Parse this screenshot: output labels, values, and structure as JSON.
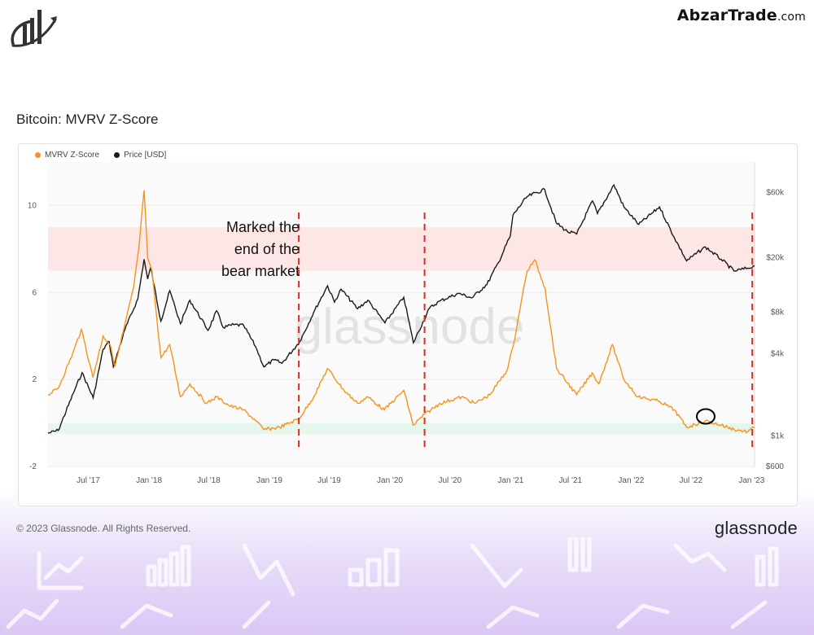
{
  "header": {
    "brand_name": "AbzarTrade",
    "brand_suffix": ".com"
  },
  "chart_title": "Bitcoin: MVRV Z-Score",
  "footer": {
    "copyright": "© 2023 Glassnode. All Rights Reserved.",
    "brand": "glassnode"
  },
  "watermark": "glassnode",
  "colors": {
    "mvrv": "#f7931a",
    "price": "#1a1a1a",
    "red_band": "#fde3e3",
    "green_band": "#e2f5ea",
    "marker": "#e02a1a"
  },
  "chart_data": {
    "type": "line",
    "title": "Bitcoin: MVRV Z-Score",
    "legend": [
      "MVRV Z-Score",
      "Price [USD]"
    ],
    "legend_position": "top-left",
    "x_tick_labels": [
      "Jul '17",
      "Jan '18",
      "Jul '18",
      "Jan '19",
      "Jul '19",
      "Jan '20",
      "Jul '20",
      "Jan '21",
      "Jul '21",
      "Jan '22",
      "Jul '22",
      "Jan '23"
    ],
    "x_range": [
      "2017-03-01",
      "2023-01-10"
    ],
    "y_left": {
      "ylim": [
        -2,
        12
      ],
      "ticks": [
        "-2",
        "2",
        "6",
        "10"
      ]
    },
    "y_right": {
      "scale": "log",
      "ylim": [
        600,
        100000
      ],
      "ticks": [
        {
          "label": "$600",
          "value": 600
        },
        {
          "label": "$1k",
          "value": 1000
        },
        {
          "label": "$4k",
          "value": 4000
        },
        {
          "label": "$8k",
          "value": 8000
        },
        {
          "label": "$20k",
          "value": 20000
        },
        {
          "label": "$60k",
          "value": 60000
        }
      ]
    },
    "zones": [
      {
        "name": "red",
        "y_from": 7,
        "y_to": 9
      },
      {
        "name": "green",
        "y_from": -0.5,
        "y_to": 0
      }
    ],
    "series": [
      {
        "name": "MVRV Z-Score",
        "axis": "left",
        "points": [
          [
            "2017-03-01",
            1.3
          ],
          [
            "2017-04-01",
            1.6
          ],
          [
            "2017-05-15",
            3.2
          ],
          [
            "2017-06-10",
            4.3
          ],
          [
            "2017-07-15",
            2.1
          ],
          [
            "2017-08-15",
            4.0
          ],
          [
            "2017-09-05",
            3.6
          ],
          [
            "2017-09-20",
            2.6
          ],
          [
            "2017-10-15",
            4.2
          ],
          [
            "2017-11-15",
            6.2
          ],
          [
            "2017-12-01",
            8.0
          ],
          [
            "2017-12-17",
            10.7
          ],
          [
            "2017-12-28",
            7.6
          ],
          [
            "2018-01-10",
            7.0
          ],
          [
            "2018-02-06",
            3.0
          ],
          [
            "2018-03-05",
            3.6
          ],
          [
            "2018-04-06",
            1.2
          ],
          [
            "2018-05-05",
            1.8
          ],
          [
            "2018-06-25",
            0.9
          ],
          [
            "2018-07-25",
            1.2
          ],
          [
            "2018-09-01",
            0.8
          ],
          [
            "2018-10-15",
            0.6
          ],
          [
            "2018-11-20",
            0.1
          ],
          [
            "2018-12-15",
            -0.3
          ],
          [
            "2019-02-01",
            -0.2
          ],
          [
            "2019-04-01",
            0.2
          ],
          [
            "2019-05-15",
            1.2
          ],
          [
            "2019-06-26",
            2.5
          ],
          [
            "2019-08-15",
            1.5
          ],
          [
            "2019-09-25",
            0.9
          ],
          [
            "2019-10-26",
            1.2
          ],
          [
            "2019-12-15",
            0.6
          ],
          [
            "2020-02-12",
            1.5
          ],
          [
            "2020-03-12",
            -0.1
          ],
          [
            "2020-04-15",
            0.4
          ],
          [
            "2020-06-01",
            0.9
          ],
          [
            "2020-08-05",
            1.2
          ],
          [
            "2020-09-15",
            0.9
          ],
          [
            "2020-10-30",
            1.3
          ],
          [
            "2020-12-20",
            2.4
          ],
          [
            "2021-01-08",
            3.5
          ],
          [
            "2021-02-01",
            5.5
          ],
          [
            "2021-02-20",
            7.0
          ],
          [
            "2021-03-15",
            7.5
          ],
          [
            "2021-04-15",
            6.2
          ],
          [
            "2021-05-20",
            2.5
          ],
          [
            "2021-07-20",
            1.3
          ],
          [
            "2021-09-05",
            2.3
          ],
          [
            "2021-09-25",
            1.8
          ],
          [
            "2021-11-05",
            3.6
          ],
          [
            "2021-12-10",
            2.0
          ],
          [
            "2022-01-22",
            1.2
          ],
          [
            "2022-03-28",
            1.0
          ],
          [
            "2022-05-12",
            0.6
          ],
          [
            "2022-06-18",
            -0.2
          ],
          [
            "2022-08-14",
            0.1
          ],
          [
            "2022-10-01",
            -0.1
          ],
          [
            "2022-11-09",
            -0.3
          ],
          [
            "2022-12-20",
            -0.4
          ],
          [
            "2023-01-10",
            -0.2
          ]
        ]
      },
      {
        "name": "Price [USD]",
        "axis": "right",
        "points": [
          [
            "2017-03-01",
            1050
          ],
          [
            "2017-04-01",
            1100
          ],
          [
            "2017-05-25",
            2300
          ],
          [
            "2017-06-12",
            2900
          ],
          [
            "2017-07-16",
            1900
          ],
          [
            "2017-08-15",
            4300
          ],
          [
            "2017-09-02",
            4900
          ],
          [
            "2017-09-15",
            3200
          ],
          [
            "2017-10-20",
            6000
          ],
          [
            "2017-11-28",
            10000
          ],
          [
            "2017-12-17",
            19500
          ],
          [
            "2017-12-28",
            14000
          ],
          [
            "2018-01-06",
            17000
          ],
          [
            "2018-02-06",
            6900
          ],
          [
            "2018-03-05",
            11500
          ],
          [
            "2018-04-06",
            6600
          ],
          [
            "2018-05-05",
            9800
          ],
          [
            "2018-06-29",
            5900
          ],
          [
            "2018-07-25",
            8200
          ],
          [
            "2018-08-14",
            6200
          ],
          [
            "2018-09-15",
            6500
          ],
          [
            "2018-10-15",
            6400
          ],
          [
            "2018-11-20",
            4500
          ],
          [
            "2018-12-15",
            3200
          ],
          [
            "2019-01-15",
            3600
          ],
          [
            "2019-02-08",
            3400
          ],
          [
            "2019-04-03",
            4900
          ],
          [
            "2019-05-15",
            8000
          ],
          [
            "2019-06-26",
            12500
          ],
          [
            "2019-07-17",
            9500
          ],
          [
            "2019-08-06",
            11800
          ],
          [
            "2019-09-25",
            8500
          ],
          [
            "2019-10-26",
            9800
          ],
          [
            "2019-12-17",
            6700
          ],
          [
            "2020-02-12",
            10300
          ],
          [
            "2020-03-12",
            4800
          ],
          [
            "2020-04-30",
            8600
          ],
          [
            "2020-06-01",
            9700
          ],
          [
            "2020-07-27",
            11000
          ],
          [
            "2020-09-05",
            10200
          ],
          [
            "2020-10-21",
            12800
          ],
          [
            "2020-11-25",
            18500
          ],
          [
            "2020-12-31",
            29000
          ],
          [
            "2021-01-08",
            41000
          ],
          [
            "2021-02-20",
            56000
          ],
          [
            "2021-04-14",
            63000
          ],
          [
            "2021-05-19",
            36000
          ],
          [
            "2021-06-22",
            31000
          ],
          [
            "2021-07-20",
            29800
          ],
          [
            "2021-09-06",
            52000
          ],
          [
            "2021-09-21",
            42000
          ],
          [
            "2021-11-10",
            68000
          ],
          [
            "2021-12-10",
            47000
          ],
          [
            "2022-01-24",
            35000
          ],
          [
            "2022-03-28",
            47000
          ],
          [
            "2022-05-12",
            28000
          ],
          [
            "2022-06-18",
            19000
          ],
          [
            "2022-08-14",
            24000
          ],
          [
            "2022-10-01",
            19500
          ],
          [
            "2022-11-09",
            16000
          ],
          [
            "2022-12-20",
            16800
          ],
          [
            "2023-01-10",
            17400
          ]
        ]
      }
    ],
    "vertical_markers": [
      "2019-03-31",
      "2020-04-15",
      "2023-01-03"
    ],
    "annotation": {
      "lines": [
        "Marked the",
        "end of the",
        "bear market"
      ]
    },
    "highlight_circle_at": {
      "x": "2022-08-15",
      "y": 0.3
    }
  }
}
